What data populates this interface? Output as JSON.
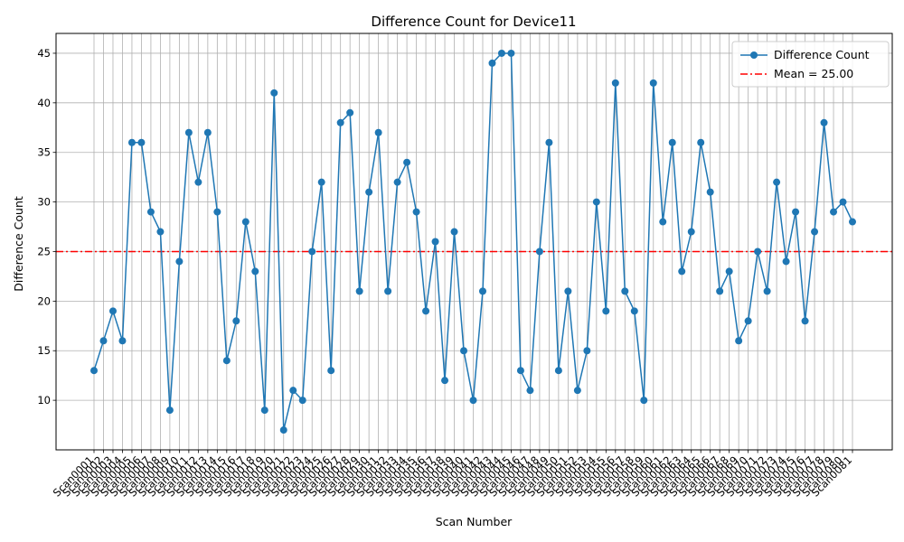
{
  "chart_data": {
    "type": "line",
    "title": "Difference Count for Device11",
    "xlabel": "Scan Number",
    "ylabel": "Difference Count",
    "ylim": [
      5,
      47
    ],
    "yticks": [
      10,
      15,
      20,
      25,
      30,
      35,
      40,
      45
    ],
    "grid": true,
    "legend_position": "top-right",
    "categories": [
      "Scan0001",
      "Scan0002",
      "Scan0003",
      "Scan0004",
      "Scan0005",
      "Scan0006",
      "Scan0007",
      "Scan0008",
      "Scan0009",
      "Scan0010",
      "Scan0011",
      "Scan0012",
      "Scan0013",
      "Scan0014",
      "Scan0015",
      "Scan0016",
      "Scan0017",
      "Scan0018",
      "Scan0019",
      "Scan0020",
      "Scan0021",
      "Scan0022",
      "Scan0023",
      "Scan0024",
      "Scan0025",
      "Scan0026",
      "Scan0027",
      "Scan0028",
      "Scan0029",
      "Scan0030",
      "Scan0031",
      "Scan0032",
      "Scan0033",
      "Scan0034",
      "Scan0035",
      "Scan0036",
      "Scan0037",
      "Scan0038",
      "Scan0039",
      "Scan0040",
      "Scan0041",
      "Scan0042",
      "Scan0043",
      "Scan0044",
      "Scan0045",
      "Scan0046",
      "Scan0047",
      "Scan0048",
      "Scan0049",
      "Scan0050",
      "Scan0051",
      "Scan0052",
      "Scan0053",
      "Scan0054",
      "Scan0055",
      "Scan0056",
      "Scan0057",
      "Scan0058",
      "Scan0059",
      "Scan0060",
      "Scan0061",
      "Scan0062",
      "Scan0063",
      "Scan0064",
      "Scan0065",
      "Scan0066",
      "Scan0067",
      "Scan0068",
      "Scan0069",
      "Scan0070",
      "Scan0071",
      "Scan0072",
      "Scan0073",
      "Scan0074",
      "Scan0075",
      "Scan0076",
      "Scan0077",
      "Scan0078",
      "Scan0079",
      "Scan0080",
      "Scan0081"
    ],
    "series": [
      {
        "name": "Difference Count",
        "color": "#1f77b4",
        "values": [
          13,
          16,
          19,
          16,
          36,
          36,
          29,
          27,
          9,
          24,
          37,
          32,
          37,
          29,
          14,
          18,
          28,
          23,
          9,
          41,
          7,
          11,
          10,
          25,
          32,
          13,
          38,
          39,
          21,
          31,
          37,
          21,
          32,
          34,
          29,
          19,
          26,
          12,
          27,
          15,
          10,
          21,
          44,
          45,
          45,
          13,
          11,
          25,
          36,
          13,
          21,
          11,
          15,
          30,
          19,
          42,
          21,
          19,
          10,
          42,
          28,
          36,
          23,
          27,
          36,
          31,
          21,
          23,
          16,
          18,
          25,
          21,
          32,
          24,
          29,
          18,
          27,
          38,
          29,
          30,
          28
        ]
      }
    ],
    "mean_line": {
      "name": "Mean = 25.00",
      "value": 25.0,
      "color": "#ff0000"
    }
  }
}
